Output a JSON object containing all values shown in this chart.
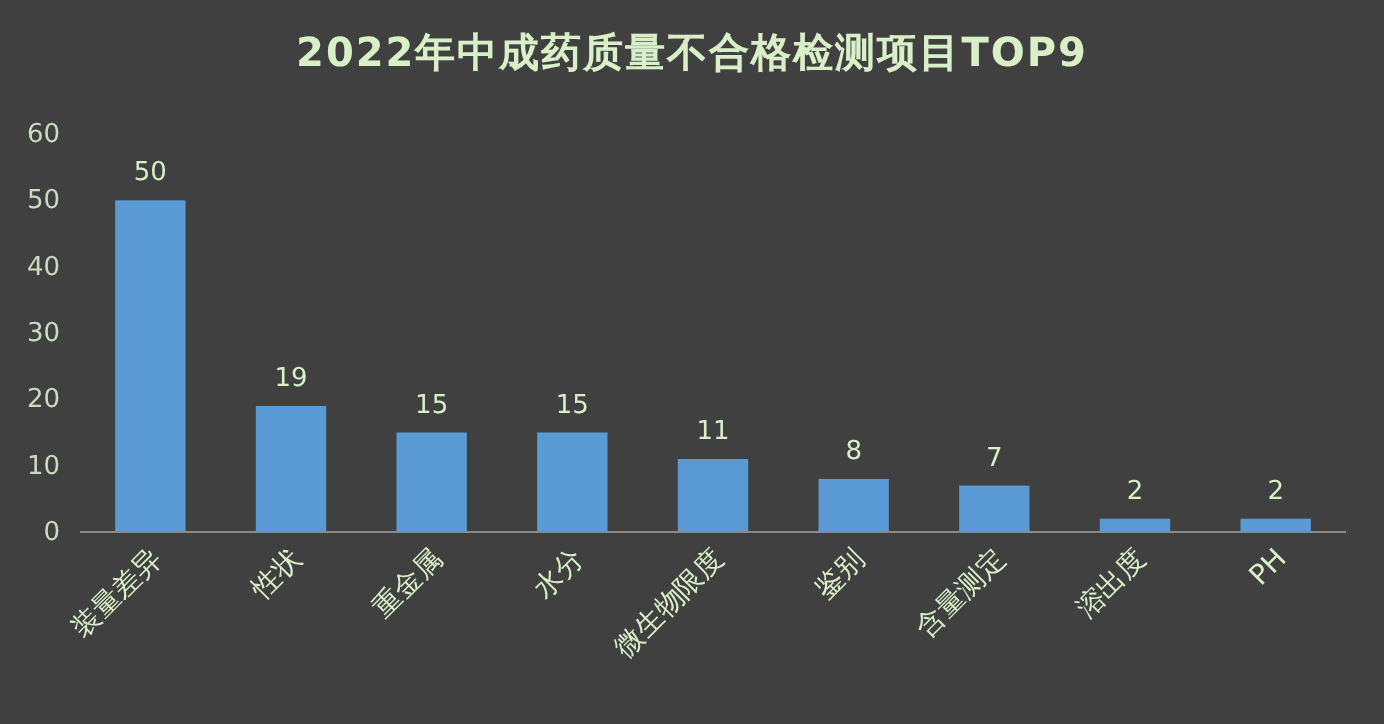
{
  "chart_data": {
    "type": "bar",
    "title": "2022年中成药质量不合格检测项目TOP9",
    "categories": [
      "装量差异",
      "性状",
      "重金属",
      "水分",
      "微生物限度",
      "鉴别",
      "含量测定",
      "溶出度",
      "PH"
    ],
    "values": [
      50,
      19,
      15,
      15,
      11,
      8,
      7,
      2,
      2
    ],
    "color": "#5b9bd5",
    "ylim": [
      0,
      60
    ],
    "yticks": [
      0,
      10,
      20,
      30,
      40,
      50,
      60
    ],
    "grid": false,
    "data_labels": true
  }
}
